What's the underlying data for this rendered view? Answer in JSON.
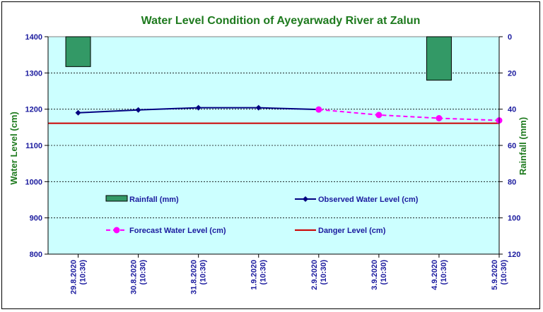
{
  "chart_data": {
    "type": "line",
    "title": "Water Level Condition of Ayeyarwady  River at Zalun",
    "ylabel": "Water Level (cm)",
    "y2label": "Rainfall (mm)",
    "ylim": [
      800,
      1400
    ],
    "y_ticks": [
      "800",
      "900",
      "1000",
      "1100",
      "1200",
      "1300",
      "1400"
    ],
    "y2lim": [
      0,
      120
    ],
    "y2_inverted": true,
    "y2_ticks": [
      "0",
      "20",
      "40",
      "60",
      "80",
      "100",
      "120"
    ],
    "categories": [
      [
        "29.8.2020",
        "(10:30)"
      ],
      [
        "30.8.2020",
        "(10:30)"
      ],
      [
        "31.8.2020",
        "(10:30)"
      ],
      [
        "1.9.2020",
        "(10:30)"
      ],
      [
        "2.9.2020",
        "(10:30)"
      ],
      [
        "3.9.2020",
        "(10:30)"
      ],
      [
        "4.9.2020",
        "(10:30)"
      ],
      [
        "5.9.2020",
        "(10:30)"
      ]
    ],
    "grid": true,
    "series": [
      {
        "name": "Rainfall (mm)",
        "type": "bar",
        "axis": "y2",
        "color": "#339966",
        "values": [
          16.5,
          null,
          null,
          null,
          null,
          null,
          24,
          null
        ]
      },
      {
        "name": "Observed Water Level (cm)",
        "type": "line",
        "axis": "y",
        "color": "#000080",
        "marker": "diamond",
        "values": [
          1190,
          1198,
          1204,
          1204,
          1199,
          null,
          null,
          null
        ]
      },
      {
        "name": "Forecast Water Level (cm)",
        "type": "line",
        "axis": "y",
        "color": "#ff00ff",
        "marker": "circle",
        "dashed": true,
        "values": [
          null,
          null,
          null,
          null,
          1199,
          1184,
          1175,
          1169
        ]
      },
      {
        "name": "Danger Level (cm)",
        "type": "line",
        "axis": "y",
        "color": "#cc0000",
        "constant": true,
        "values": [
          1161,
          1161,
          1161,
          1161,
          1161,
          1161,
          1161,
          1161
        ]
      }
    ],
    "legend_placement": "inside-plot-center"
  }
}
